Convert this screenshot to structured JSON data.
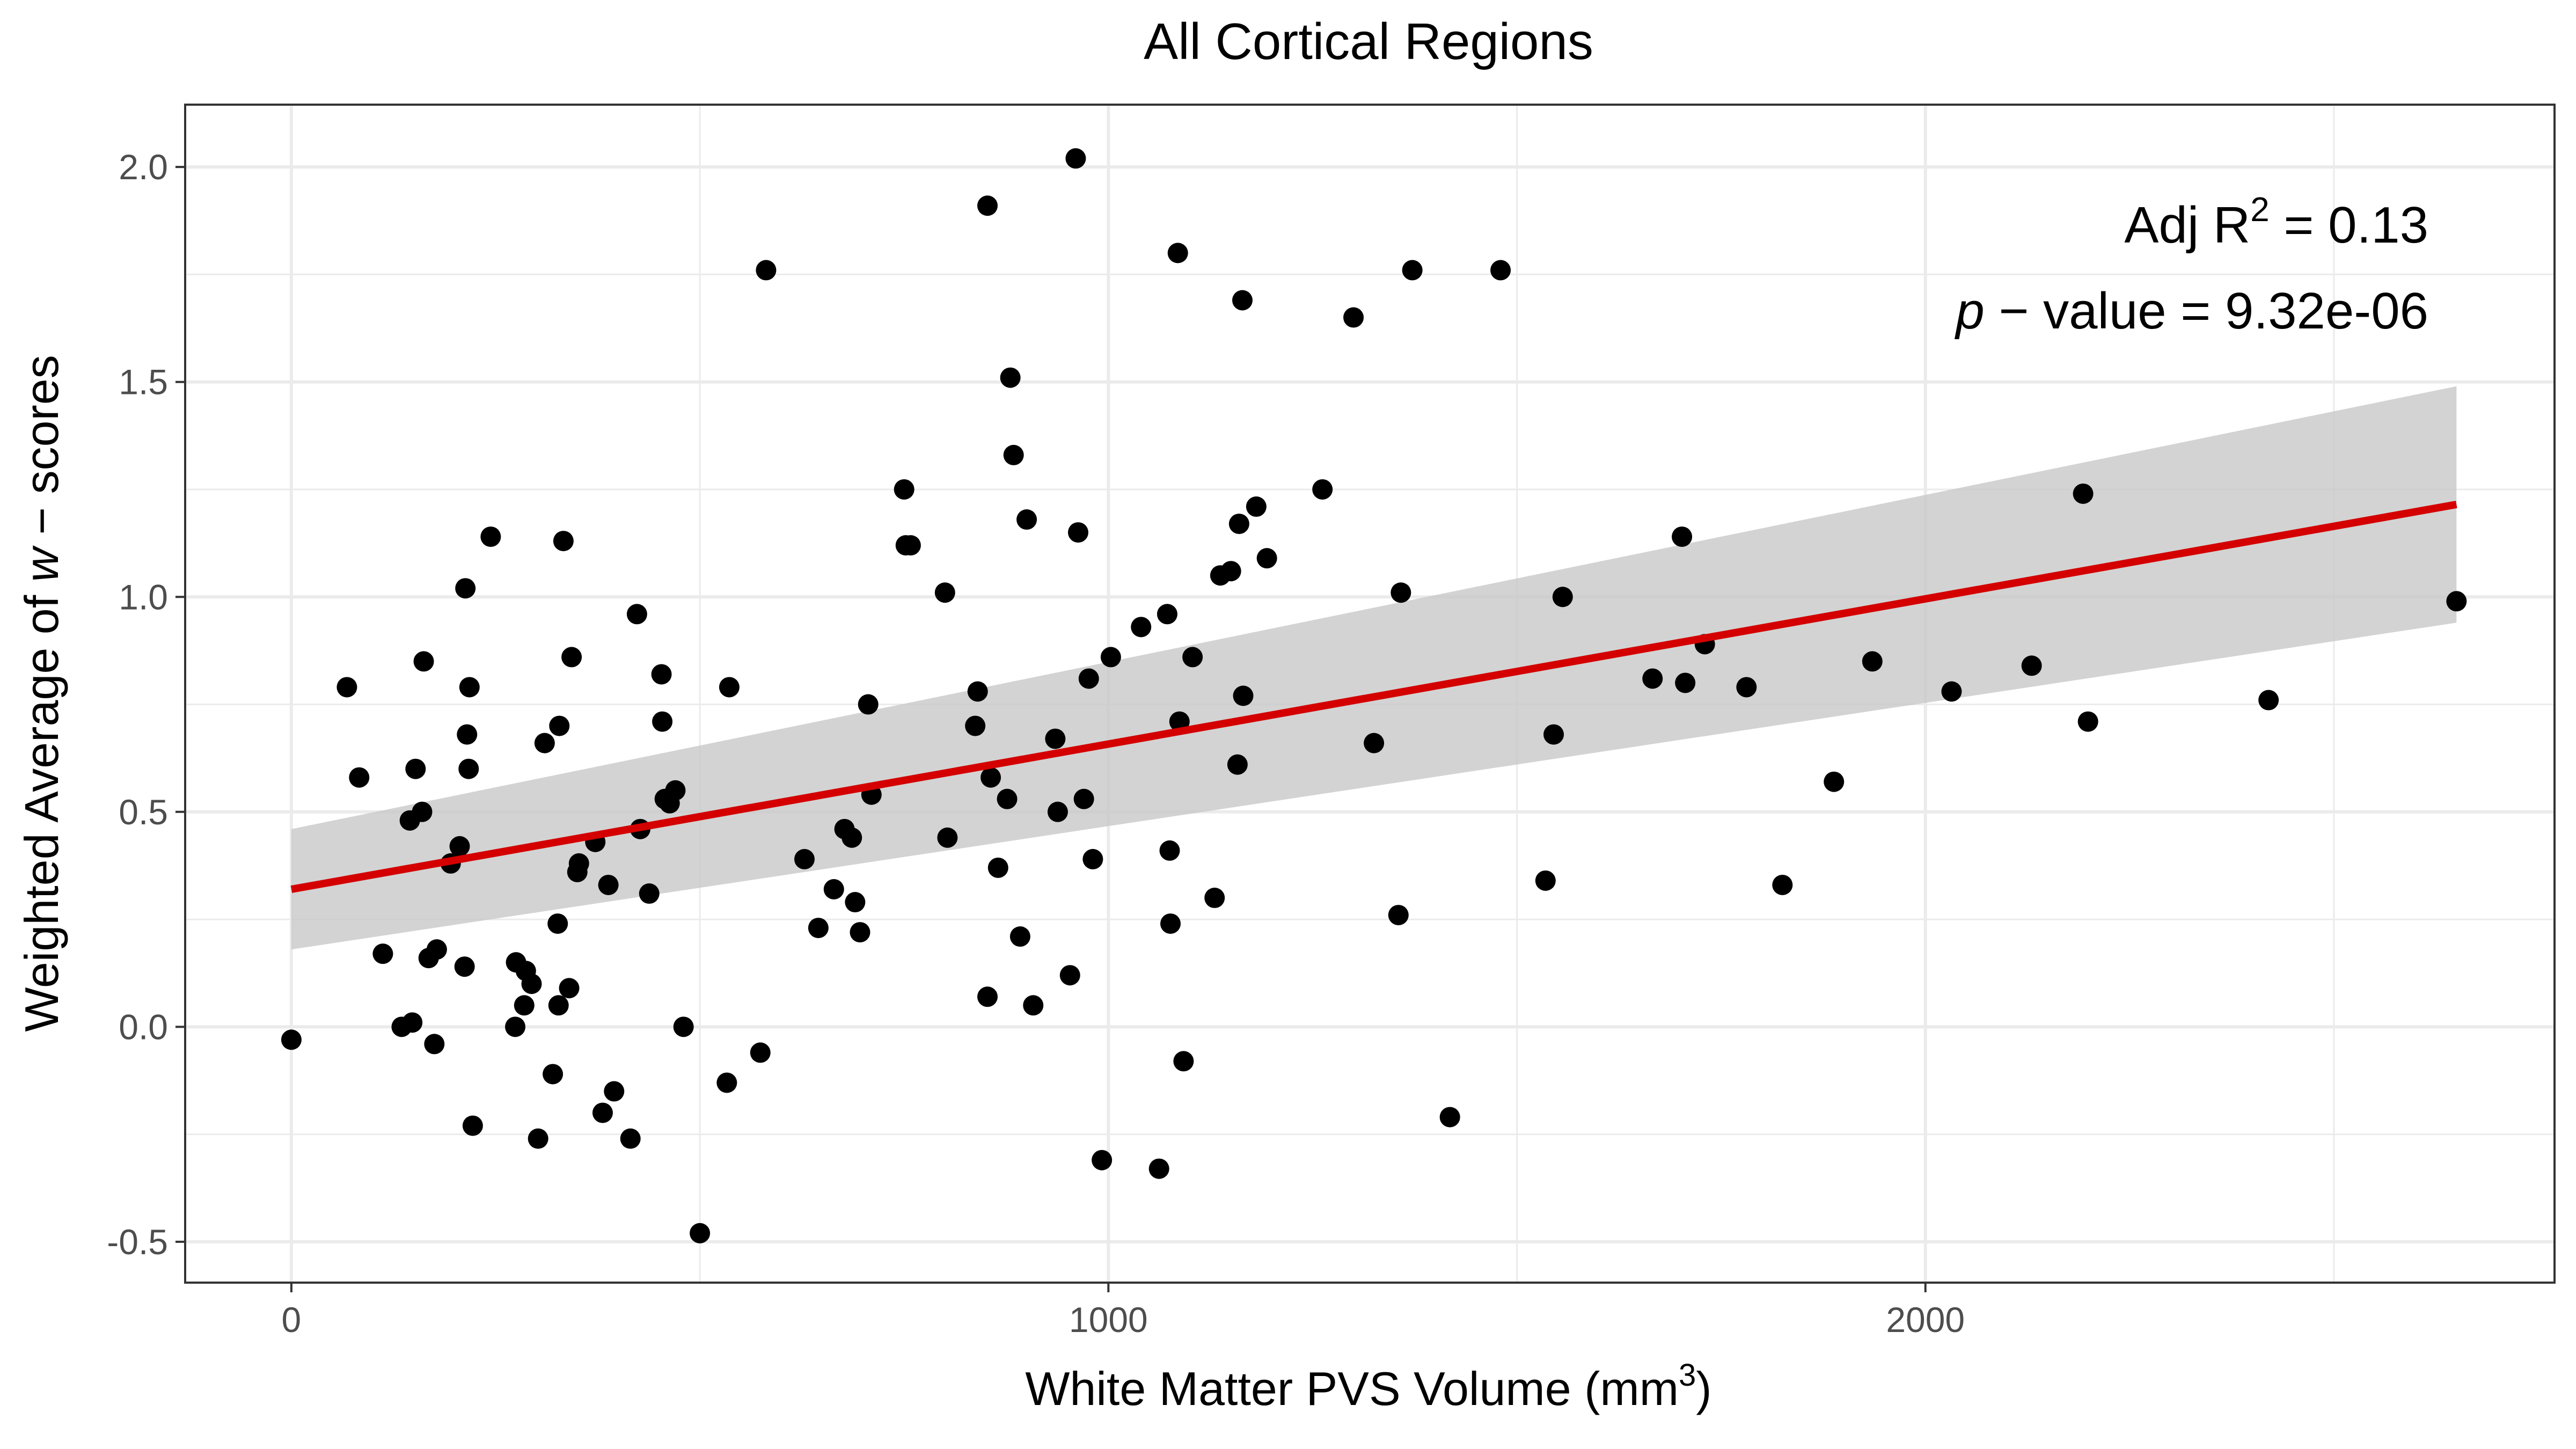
{
  "chart_data": {
    "type": "scatter",
    "title": "All Cortical Regions",
    "xlabel": "White Matter PVS Volume (mm3)",
    "xlabel_parts": {
      "main": "White Matter PVS Volume (mm",
      "sup": "3",
      "close": ")"
    },
    "ylabel": "Weighted Average of w − scores",
    "ylabel_parts": {
      "pre": "Weighted Average of ",
      "italic": "w",
      "post": " − scores"
    },
    "xlim": [
      -130,
      2770
    ],
    "ylim": [
      -0.595,
      2.145
    ],
    "x_ticks": [
      {
        "value": 0,
        "label": "0"
      },
      {
        "value": 1000,
        "label": "1000"
      },
      {
        "value": 2000,
        "label": "2000"
      }
    ],
    "x_minor_ticks": [
      500,
      1500,
      2500
    ],
    "y_ticks": [
      {
        "value": -0.5,
        "label": "-0.5"
      },
      {
        "value": 0.0,
        "label": "0.0"
      },
      {
        "value": 0.5,
        "label": "0.5"
      },
      {
        "value": 1.0,
        "label": "1.0"
      },
      {
        "value": 1.5,
        "label": "1.5"
      },
      {
        "value": 2.0,
        "label": "2.0"
      }
    ],
    "y_minor_ticks": [
      -0.25,
      0.25,
      0.75,
      1.25,
      1.75
    ],
    "grid": true,
    "colors": {
      "points": "#000000",
      "fit_line": "#d40000",
      "confidence_band": "#c8c8c8",
      "grid": "#ebebeb",
      "axis_text": "#4d4d4d"
    },
    "annotations": [
      {
        "id": "adj-r2",
        "pre": "Adj R",
        "sup": "2",
        "post": " = 0.13"
      },
      {
        "id": "p-value",
        "italic": "p",
        "post": " − value = 9.32e-06"
      }
    ],
    "fit": {
      "x_range": [
        0,
        2650
      ],
      "y_at_start": 0.32,
      "y_at_end": 1.215,
      "ci_lower_at_start": 0.18,
      "ci_upper_at_start": 0.46,
      "ci_lower_at_end": 0.94,
      "ci_upper_at_end": 1.49
    },
    "points": [
      [
        0,
        -0.03
      ],
      [
        68,
        0.79
      ],
      [
        83,
        0.58
      ],
      [
        112,
        0.17
      ],
      [
        135,
        0.0
      ],
      [
        145,
        0.48
      ],
      [
        148,
        0.01
      ],
      [
        152,
        0.6
      ],
      [
        160,
        0.5
      ],
      [
        162,
        0.85
      ],
      [
        168,
        0.16
      ],
      [
        175,
        -0.04
      ],
      [
        178,
        0.18
      ],
      [
        195,
        0.38
      ],
      [
        206,
        0.42
      ],
      [
        212,
        0.14
      ],
      [
        213,
        1.02
      ],
      [
        215,
        0.68
      ],
      [
        217,
        0.6
      ],
      [
        218,
        0.79
      ],
      [
        222,
        -0.23
      ],
      [
        244,
        1.14
      ],
      [
        274,
        0.0
      ],
      [
        275,
        0.15
      ],
      [
        285,
        0.05
      ],
      [
        287,
        0.13
      ],
      [
        294,
        0.1
      ],
      [
        302,
        -0.26
      ],
      [
        310,
        0.66
      ],
      [
        320,
        -0.11
      ],
      [
        326,
        0.24
      ],
      [
        327,
        0.05
      ],
      [
        328,
        0.7
      ],
      [
        333,
        1.13
      ],
      [
        340,
        0.09
      ],
      [
        343,
        0.86
      ],
      [
        350,
        0.36
      ],
      [
        352,
        0.38
      ],
      [
        372,
        0.43
      ],
      [
        381,
        -0.2
      ],
      [
        388,
        0.33
      ],
      [
        395,
        -0.15
      ],
      [
        415,
        -0.26
      ],
      [
        423,
        0.96
      ],
      [
        427,
        0.46
      ],
      [
        438,
        0.31
      ],
      [
        453,
        0.82
      ],
      [
        454,
        0.71
      ],
      [
        457,
        0.53
      ],
      [
        463,
        0.52
      ],
      [
        470,
        0.55
      ],
      [
        480,
        0.0
      ],
      [
        500,
        -0.48
      ],
      [
        533,
        -0.13
      ],
      [
        536,
        0.79
      ],
      [
        574,
        -0.06
      ],
      [
        581,
        1.76
      ],
      [
        628,
        0.39
      ],
      [
        645,
        0.23
      ],
      [
        664,
        0.32
      ],
      [
        677,
        0.46
      ],
      [
        686,
        0.44
      ],
      [
        690,
        0.29
      ],
      [
        696,
        0.22
      ],
      [
        706,
        0.75
      ],
      [
        710,
        0.54
      ],
      [
        750,
        1.25
      ],
      [
        752,
        1.12
      ],
      [
        758,
        1.12
      ],
      [
        800,
        1.01
      ],
      [
        803,
        0.44
      ],
      [
        837,
        0.7
      ],
      [
        840,
        0.78
      ],
      [
        852,
        1.91
      ],
      [
        852,
        0.07
      ],
      [
        856,
        0.58
      ],
      [
        865,
        0.37
      ],
      [
        876,
        0.53
      ],
      [
        880,
        1.51
      ],
      [
        884,
        1.33
      ],
      [
        892,
        0.21
      ],
      [
        900,
        1.18
      ],
      [
        908,
        0.05
      ],
      [
        935,
        0.67
      ],
      [
        938,
        0.5
      ],
      [
        953,
        0.12
      ],
      [
        960,
        2.02
      ],
      [
        963,
        1.15
      ],
      [
        970,
        0.53
      ],
      [
        976,
        0.81
      ],
      [
        981,
        0.39
      ],
      [
        992,
        -0.31
      ],
      [
        1003,
        0.86
      ],
      [
        1040,
        0.93
      ],
      [
        1062,
        -0.33
      ],
      [
        1072,
        0.96
      ],
      [
        1075,
        0.41
      ],
      [
        1076,
        0.24
      ],
      [
        1085,
        1.8
      ],
      [
        1087,
        0.71
      ],
      [
        1092,
        -0.08
      ],
      [
        1103,
        0.86
      ],
      [
        1130,
        0.3
      ],
      [
        1137,
        1.05
      ],
      [
        1150,
        1.06
      ],
      [
        1158,
        0.61
      ],
      [
        1160,
        1.17
      ],
      [
        1164,
        1.69
      ],
      [
        1165,
        0.77
      ],
      [
        1181,
        1.21
      ],
      [
        1194,
        1.09
      ],
      [
        1262,
        1.25
      ],
      [
        1300,
        1.65
      ],
      [
        1325,
        0.66
      ],
      [
        1355,
        0.26
      ],
      [
        1358,
        1.01
      ],
      [
        1372,
        1.76
      ],
      [
        1418,
        -0.21
      ],
      [
        1480,
        1.76
      ],
      [
        1535,
        0.34
      ],
      [
        1545,
        0.68
      ],
      [
        1556,
        1.0
      ],
      [
        1666,
        0.81
      ],
      [
        1702,
        1.14
      ],
      [
        1706,
        0.8
      ],
      [
        1730,
        0.89
      ],
      [
        1781,
        0.79
      ],
      [
        1825,
        0.33
      ],
      [
        1888,
        0.57
      ],
      [
        1935,
        0.85
      ],
      [
        2032,
        0.78
      ],
      [
        2130,
        0.84
      ],
      [
        2193,
        1.24
      ],
      [
        2199,
        0.71
      ],
      [
        2420,
        0.76
      ],
      [
        2650,
        0.99
      ]
    ]
  }
}
